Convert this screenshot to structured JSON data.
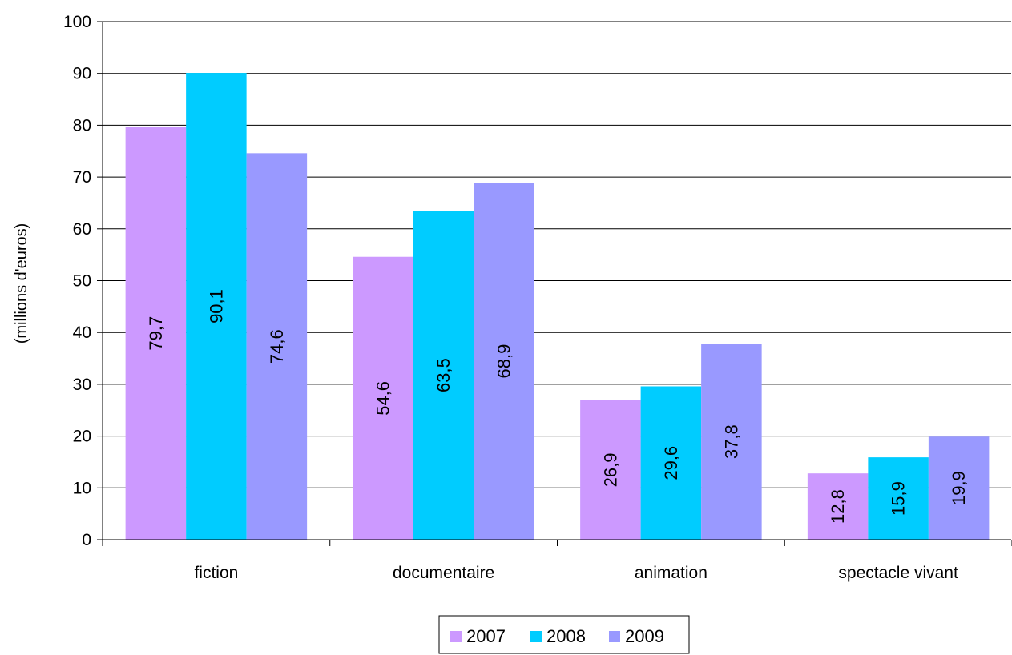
{
  "chart_data": {
    "type": "bar",
    "categories": [
      "fiction",
      "documentaire",
      "animation",
      "spectacle vivant"
    ],
    "series": [
      {
        "name": "2007",
        "color": "#CC99FF",
        "values": [
          79.7,
          54.6,
          26.9,
          12.8
        ],
        "labels": [
          "79,7",
          "54,6",
          "26,9",
          "12,8"
        ]
      },
      {
        "name": "2008",
        "color": "#00CCFF",
        "values": [
          90.1,
          63.5,
          29.6,
          15.9
        ],
        "labels": [
          "90,1",
          "63,5",
          "29,6",
          "15,9"
        ]
      },
      {
        "name": "2009",
        "color": "#9999FF",
        "values": [
          74.6,
          68.9,
          37.8,
          19.9
        ],
        "labels": [
          "74,6",
          "68,9",
          "37,8",
          "19,9"
        ]
      }
    ],
    "title": "",
    "xlabel": "",
    "ylabel": "(millions d'euros)",
    "ylim": [
      0,
      100
    ],
    "yticks": [
      0,
      10,
      20,
      30,
      40,
      50,
      60,
      70,
      80,
      90,
      100
    ],
    "grid": true,
    "legend_position": "bottom"
  }
}
